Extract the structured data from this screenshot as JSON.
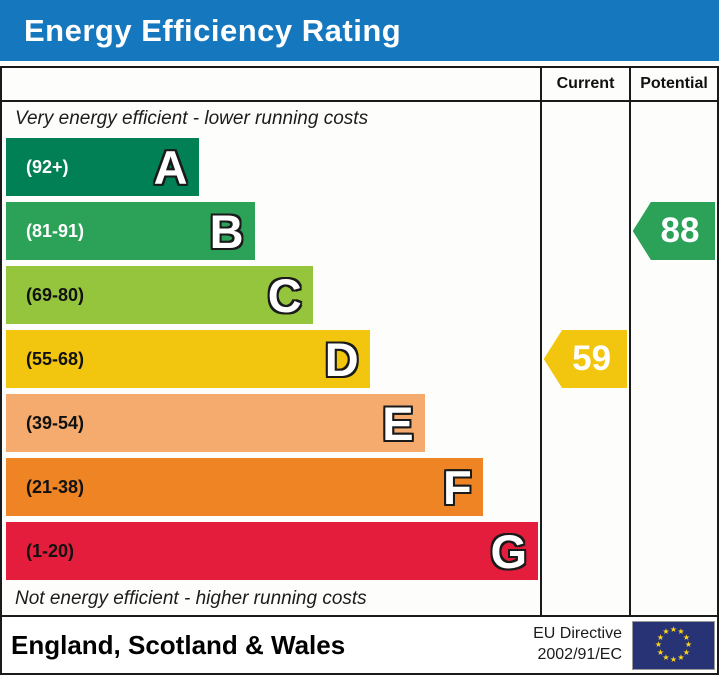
{
  "header": {
    "title": "Energy Efficiency Rating",
    "bg_color": "#1577bd"
  },
  "columns": {
    "current": "Current",
    "potential": "Potential"
  },
  "captions": {
    "top": "Very energy efficient - lower running costs",
    "bottom": "Not energy efficient - higher running costs"
  },
  "chart_data": {
    "type": "bar",
    "title": "Energy Efficiency Rating",
    "bands": [
      {
        "letter": "A",
        "range": "(92+)",
        "color": "#008054",
        "width_pct": 35.8,
        "label_color": "#ffffff"
      },
      {
        "letter": "B",
        "range": "(81-91)",
        "color": "#2ba258",
        "width_pct": 46.2,
        "label_color": "#ffffff"
      },
      {
        "letter": "C",
        "range": "(69-80)",
        "color": "#95c53d",
        "width_pct": 57.0,
        "label_color": "#111111"
      },
      {
        "letter": "D",
        "range": "(55-68)",
        "color": "#f2c50e",
        "width_pct": 67.6,
        "label_color": "#111111"
      },
      {
        "letter": "E",
        "range": "(39-54)",
        "color": "#f5ab6d",
        "width_pct": 77.8,
        "label_color": "#111111"
      },
      {
        "letter": "F",
        "range": "(21-38)",
        "color": "#ee8424",
        "width_pct": 88.6,
        "label_color": "#111111"
      },
      {
        "letter": "G",
        "range": "(1-20)",
        "color": "#e51d3c",
        "width_pct": 98.9,
        "label_color": "#111111"
      }
    ],
    "current": {
      "value": "59",
      "band": "D",
      "color": "#f2c50e"
    },
    "potential": {
      "value": "88",
      "band": "B",
      "color": "#2ba258"
    }
  },
  "footer": {
    "region": "England, Scotland & Wales",
    "directive_line1": "EU Directive",
    "directive_line2": "2002/91/EC",
    "flag": {
      "icon": "eu-flag",
      "bg": "#283375",
      "star_color": "#ffd617",
      "stars": 12
    }
  }
}
